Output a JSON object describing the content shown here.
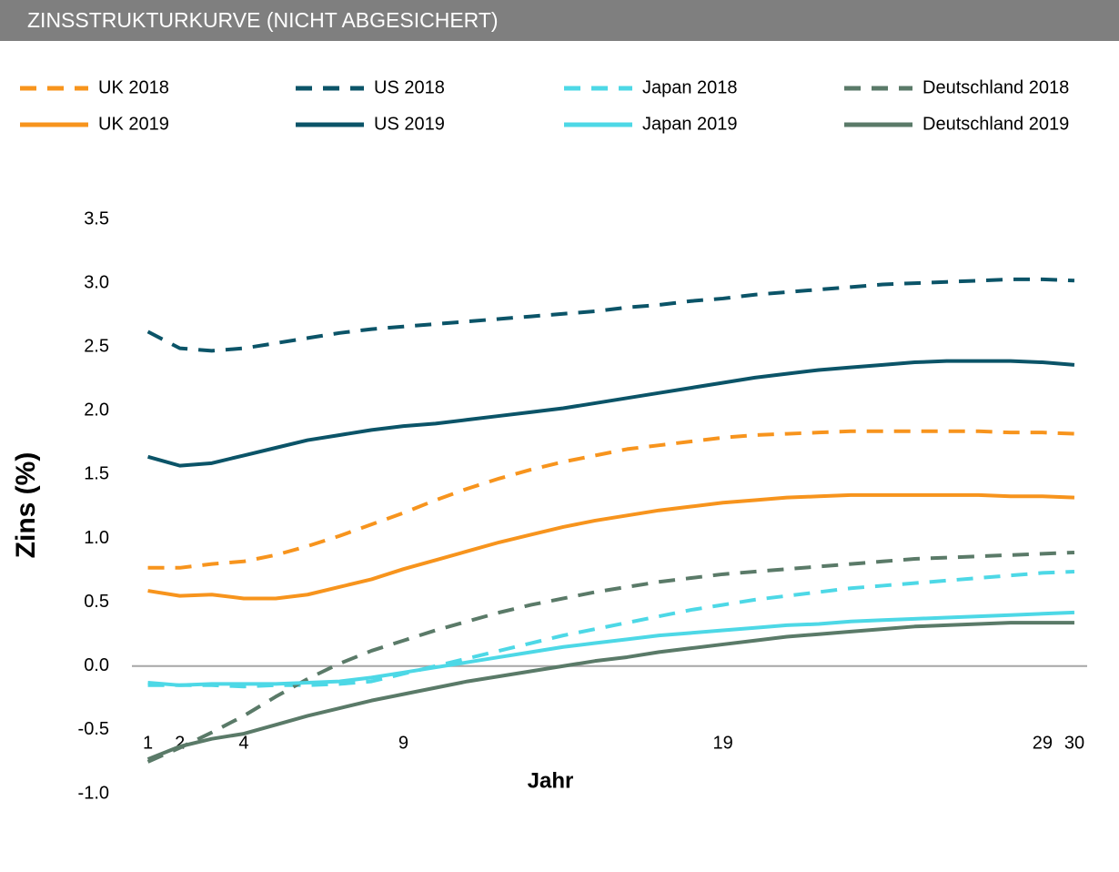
{
  "chart_data": {
    "type": "line",
    "title": "ZINSSTRUKTURKURVE (NICHT ABGESICHERT)",
    "xlabel": "Jahr",
    "ylabel": "Zins (%)",
    "x": [
      1,
      2,
      3,
      4,
      5,
      6,
      7,
      8,
      9,
      10,
      11,
      12,
      13,
      14,
      15,
      16,
      17,
      18,
      19,
      20,
      21,
      22,
      23,
      24,
      25,
      26,
      27,
      28,
      29,
      30
    ],
    "xlim": [
      0.5,
      30.4
    ],
    "xticks": [
      1,
      2,
      4,
      9,
      19,
      29,
      30
    ],
    "ylim": [
      -1.0,
      3.5
    ],
    "yticks": [
      {
        "value": -1.0,
        "label": "-1.0"
      },
      -0.5,
      {
        "value": 0,
        "label": "0.0"
      },
      0.5,
      {
        "value": 1,
        "label": "1.0"
      },
      1.5,
      {
        "value": 2,
        "label": "2.0"
      },
      2.5,
      {
        "value": 3,
        "label": "3.0"
      },
      3.5
    ],
    "series": [
      {
        "name": "UK 2018",
        "color": "#f7941d",
        "dashed": true,
        "values": [
          0.77,
          0.77,
          0.8,
          0.82,
          0.87,
          0.94,
          1.02,
          1.11,
          1.2,
          1.3,
          1.39,
          1.47,
          1.54,
          1.6,
          1.65,
          1.7,
          1.73,
          1.76,
          1.79,
          1.81,
          1.82,
          1.83,
          1.84,
          1.84,
          1.84,
          1.84,
          1.84,
          1.83,
          1.83,
          1.82
        ]
      },
      {
        "name": "US 2018",
        "color": "#0b5468",
        "dashed": true,
        "values": [
          2.62,
          2.49,
          2.47,
          2.49,
          2.53,
          2.57,
          2.61,
          2.64,
          2.66,
          2.68,
          2.7,
          2.72,
          2.74,
          2.76,
          2.78,
          2.81,
          2.83,
          2.86,
          2.88,
          2.91,
          2.93,
          2.95,
          2.97,
          2.99,
          3.0,
          3.01,
          3.02,
          3.03,
          3.03,
          3.02
        ]
      },
      {
        "name": "Japan 2018",
        "color": "#4dd8e6",
        "dashed": true,
        "values": [
          -0.15,
          -0.15,
          -0.15,
          -0.16,
          -0.15,
          -0.15,
          -0.14,
          -0.12,
          -0.06,
          0.0,
          0.06,
          0.12,
          0.18,
          0.24,
          0.29,
          0.34,
          0.39,
          0.44,
          0.48,
          0.52,
          0.55,
          0.58,
          0.61,
          0.63,
          0.65,
          0.67,
          0.69,
          0.71,
          0.73,
          0.74
        ]
      },
      {
        "name": "Deutschland 2018",
        "color": "#5a7a68",
        "dashed": true,
        "values": [
          -0.75,
          -0.64,
          -0.52,
          -0.39,
          -0.24,
          -0.1,
          0.02,
          0.12,
          0.2,
          0.28,
          0.35,
          0.42,
          0.48,
          0.53,
          0.58,
          0.62,
          0.66,
          0.69,
          0.72,
          0.74,
          0.76,
          0.78,
          0.8,
          0.82,
          0.84,
          0.85,
          0.86,
          0.87,
          0.88,
          0.89
        ]
      },
      {
        "name": "UK 2019",
        "color": "#f7941d",
        "dashed": false,
        "values": [
          0.59,
          0.55,
          0.56,
          0.53,
          0.53,
          0.56,
          0.62,
          0.68,
          0.76,
          0.83,
          0.9,
          0.97,
          1.03,
          1.09,
          1.14,
          1.18,
          1.22,
          1.25,
          1.28,
          1.3,
          1.32,
          1.33,
          1.34,
          1.34,
          1.34,
          1.34,
          1.34,
          1.33,
          1.33,
          1.32
        ]
      },
      {
        "name": "US 2019",
        "color": "#0b5468",
        "dashed": false,
        "values": [
          1.64,
          1.57,
          1.59,
          1.65,
          1.71,
          1.77,
          1.81,
          1.85,
          1.88,
          1.9,
          1.93,
          1.96,
          1.99,
          2.02,
          2.06,
          2.1,
          2.14,
          2.18,
          2.22,
          2.26,
          2.29,
          2.32,
          2.34,
          2.36,
          2.38,
          2.39,
          2.39,
          2.39,
          2.38,
          2.36
        ]
      },
      {
        "name": "Japan 2019",
        "color": "#4dd8e6",
        "dashed": false,
        "values": [
          -0.13,
          -0.15,
          -0.14,
          -0.14,
          -0.14,
          -0.13,
          -0.12,
          -0.09,
          -0.05,
          -0.01,
          0.03,
          0.07,
          0.11,
          0.15,
          0.18,
          0.21,
          0.24,
          0.26,
          0.28,
          0.3,
          0.32,
          0.33,
          0.35,
          0.36,
          0.37,
          0.38,
          0.39,
          0.4,
          0.41,
          0.42
        ]
      },
      {
        "name": "Deutschland 2019",
        "color": "#5a7a68",
        "dashed": false,
        "values": [
          -0.73,
          -0.63,
          -0.57,
          -0.53,
          -0.46,
          -0.39,
          -0.33,
          -0.27,
          -0.22,
          -0.17,
          -0.12,
          -0.08,
          -0.04,
          0.0,
          0.04,
          0.07,
          0.11,
          0.14,
          0.17,
          0.2,
          0.23,
          0.25,
          0.27,
          0.29,
          0.31,
          0.32,
          0.33,
          0.34,
          0.34,
          0.34
        ]
      }
    ]
  }
}
